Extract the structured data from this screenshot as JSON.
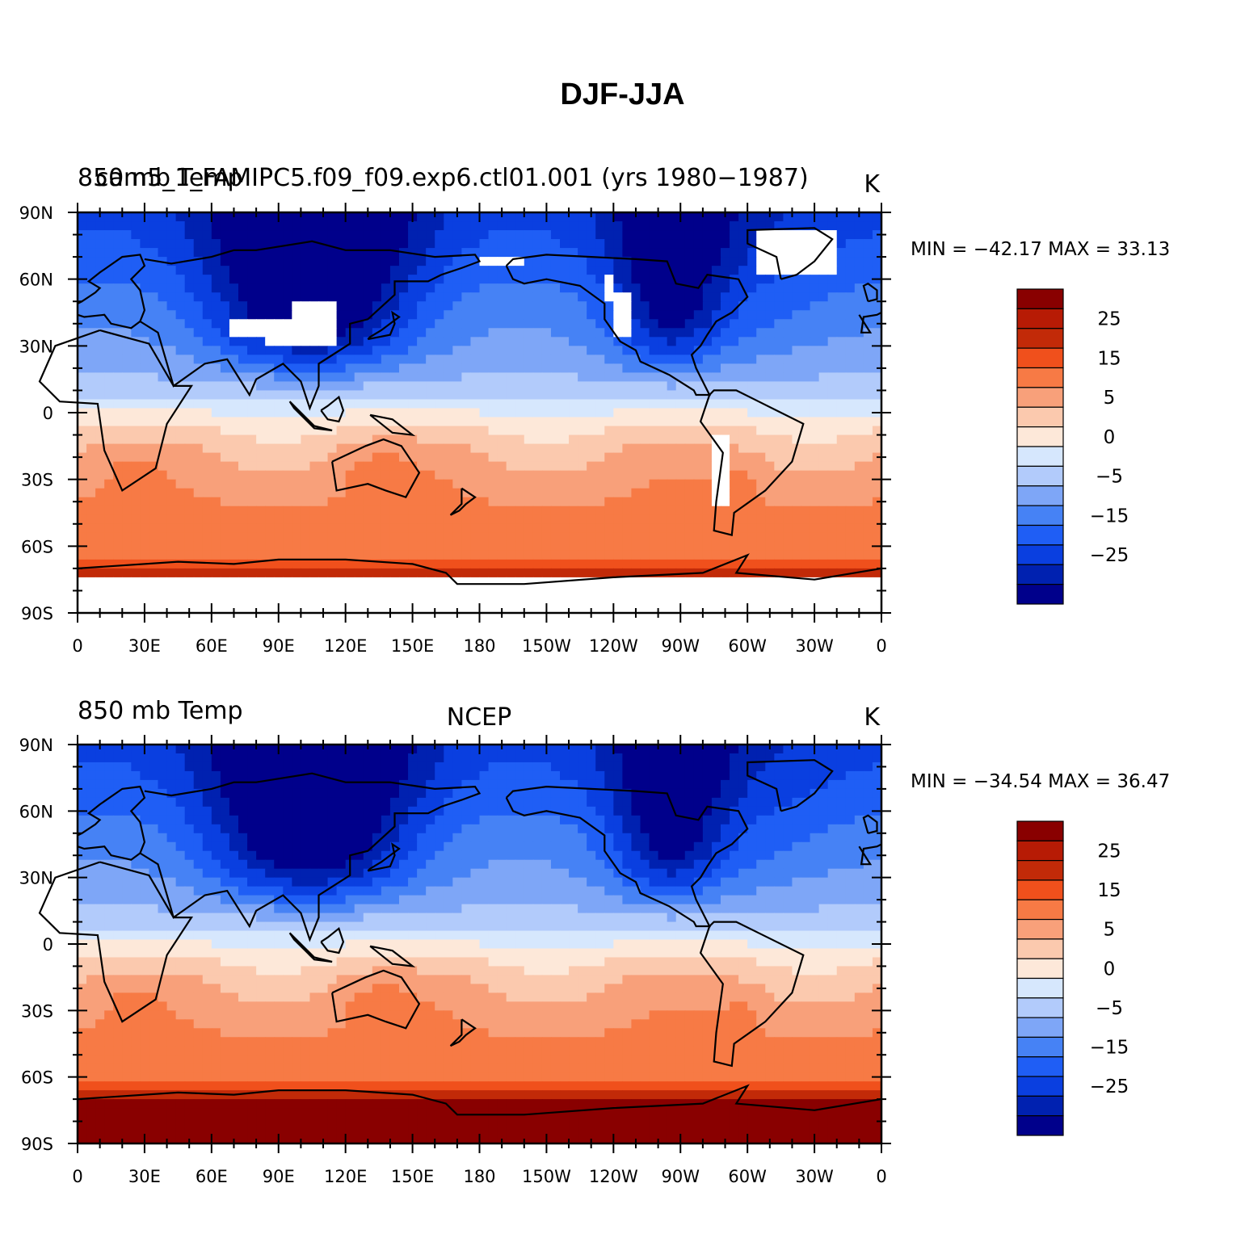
{
  "figure": {
    "title": "DJF-JJA",
    "panels": [
      {
        "id": "model",
        "left_string": "850 mb Temp",
        "overlay_string": "cam5_1_FAMIPC5.f09_f09.exp6.ctl01.001 (yrs 1980-1987)",
        "center_string": "",
        "units": "K",
        "min_label": "MIN =",
        "min_value": "-42.17",
        "max_label": "MAX =",
        "max_value": "33.13",
        "masked_color": "#ffffff"
      },
      {
        "id": "obs",
        "left_string": "850 mb Temp",
        "overlay_string": "",
        "center_string": "NCEP",
        "units": "K",
        "min_label": "MIN =",
        "min_value": "-34.54",
        "max_label": "MAX =",
        "max_value": "36.47",
        "masked_color": "#ffffff"
      }
    ]
  },
  "chart_data": {
    "type": "heatmap",
    "variable": "850 mb Temp",
    "units": "K",
    "lat_tick_labels": [
      "90N",
      "60N",
      "30N",
      "0",
      "30S",
      "60S",
      "90S"
    ],
    "lat_tick_values": [
      90,
      60,
      30,
      0,
      -30,
      -60,
      -90
    ],
    "lon_tick_labels": [
      "0",
      "30E",
      "60E",
      "90E",
      "120E",
      "150E",
      "180",
      "150W",
      "120W",
      "90W",
      "60W",
      "30W",
      "0"
    ],
    "lon_tick_values": [
      0,
      30,
      60,
      90,
      120,
      150,
      180,
      210,
      240,
      270,
      300,
      330,
      360
    ],
    "xlim": [
      0,
      360
    ],
    "ylim": [
      -90,
      90
    ],
    "colorbar": {
      "levels": [
        -30,
        -25,
        -20,
        -15,
        -10,
        -5,
        -2,
        0,
        2,
        5,
        10,
        15,
        20,
        25,
        30
      ],
      "labels": [
        "25",
        "15",
        "5",
        "0",
        "-5",
        "-15",
        "-25"
      ],
      "label_values": [
        25,
        15,
        5,
        0,
        -5,
        -15,
        -25
      ],
      "colors": [
        "#00008b",
        "#0021b0",
        "#0a3fe0",
        "#1f5ef5",
        "#4682f5",
        "#7ea6f7",
        "#b2cbfb",
        "#d6e7fd",
        "#fde8d9",
        "#fbc9ae",
        "#f8a07a",
        "#f77a45",
        "#f0501c",
        "#c22a08",
        "#b71b05",
        "#890000"
      ]
    }
  }
}
